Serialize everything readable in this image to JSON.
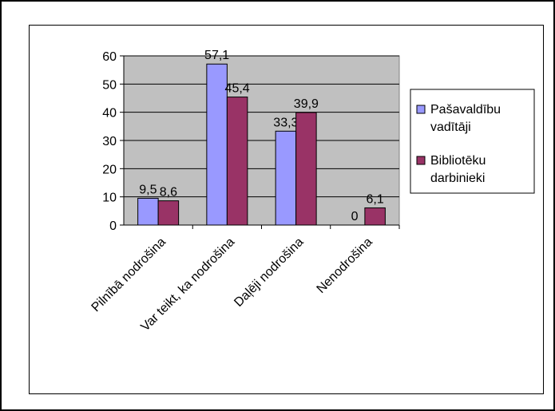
{
  "chart_data": {
    "type": "bar",
    "categories": [
      "Pilnībā nodrošina",
      "Var teikt, ka nodrošina",
      "Daļēji nodrošina",
      "Nenodrošina"
    ],
    "series": [
      {
        "name": "Pašavaldību vadītāji",
        "values": [
          9.5,
          57.1,
          33.3,
          0
        ],
        "labels": [
          "9,5",
          "57,1",
          "33,3",
          "0"
        ],
        "color": "#9999ff"
      },
      {
        "name": "Bibliotēku darbinieki",
        "values": [
          8.6,
          45.4,
          39.9,
          6.1
        ],
        "labels": [
          "8,6",
          "45,4",
          "39,9",
          "6,1"
        ],
        "color": "#993366"
      }
    ],
    "ylim": [
      0,
      60
    ],
    "yticks": [
      "0",
      "10",
      "20",
      "30",
      "40",
      "50",
      "60"
    ],
    "plot_background": "#c0c0c0",
    "grid": true,
    "legend": "right",
    "legend_lines": [
      [
        "Pašavaldību",
        "vadītāji"
      ],
      [
        "Bibliotēku",
        "darbinieki"
      ]
    ]
  }
}
